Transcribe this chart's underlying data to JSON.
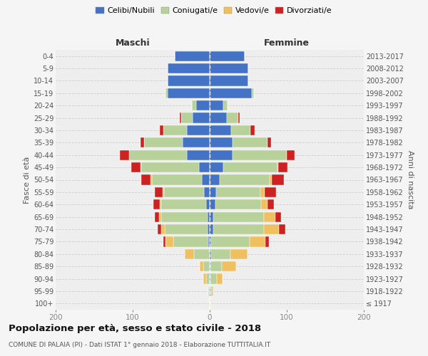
{
  "age_groups": [
    "100+",
    "95-99",
    "90-94",
    "85-89",
    "80-84",
    "75-79",
    "70-74",
    "65-69",
    "60-64",
    "55-59",
    "50-54",
    "45-49",
    "40-44",
    "35-39",
    "30-34",
    "25-29",
    "20-24",
    "15-19",
    "10-14",
    "5-9",
    "0-4"
  ],
  "birth_years": [
    "≤ 1917",
    "1918-1922",
    "1923-1927",
    "1928-1932",
    "1933-1937",
    "1938-1942",
    "1943-1947",
    "1948-1952",
    "1953-1957",
    "1958-1962",
    "1963-1967",
    "1968-1972",
    "1973-1977",
    "1978-1982",
    "1983-1987",
    "1988-1992",
    "1993-1997",
    "1998-2002",
    "2003-2007",
    "2008-2012",
    "2013-2017"
  ],
  "colors": {
    "celibi": "#4472c4",
    "coniugati": "#b8d09a",
    "vedovi": "#f0c060",
    "divorziati": "#cc2222"
  },
  "maschi": {
    "celibi": [
      0,
      0,
      0,
      0,
      0,
      2,
      3,
      3,
      5,
      7,
      10,
      14,
      30,
      35,
      30,
      22,
      18,
      55,
      55,
      55,
      45
    ],
    "coniugati": [
      0,
      2,
      5,
      8,
      20,
      45,
      55,
      60,
      58,
      52,
      65,
      75,
      75,
      50,
      30,
      15,
      5,
      2,
      0,
      0,
      0
    ],
    "vedovi": [
      0,
      0,
      3,
      5,
      12,
      10,
      5,
      3,
      2,
      2,
      2,
      1,
      0,
      0,
      0,
      0,
      0,
      0,
      0,
      0,
      0
    ],
    "divorziati": [
      0,
      0,
      0,
      0,
      0,
      3,
      5,
      5,
      8,
      10,
      12,
      12,
      12,
      5,
      5,
      2,
      0,
      0,
      0,
      0,
      0
    ]
  },
  "femmine": {
    "celibi": [
      0,
      1,
      1,
      1,
      2,
      2,
      5,
      5,
      7,
      8,
      13,
      18,
      30,
      30,
      28,
      22,
      18,
      55,
      50,
      50,
      45
    ],
    "coniugati": [
      0,
      2,
      8,
      15,
      25,
      50,
      65,
      65,
      60,
      58,
      65,
      70,
      70,
      45,
      25,
      15,
      5,
      2,
      0,
      0,
      0
    ],
    "vedovi": [
      1,
      2,
      8,
      18,
      22,
      20,
      20,
      15,
      8,
      5,
      3,
      1,
      0,
      0,
      0,
      0,
      0,
      0,
      0,
      0,
      0
    ],
    "divorziati": [
      0,
      0,
      0,
      0,
      0,
      5,
      8,
      8,
      8,
      15,
      15,
      12,
      10,
      5,
      5,
      2,
      0,
      0,
      0,
      0,
      0
    ]
  },
  "xlim": 200,
  "title": "Popolazione per età, sesso e stato civile - 2018",
  "subtitle": "COMUNE DI PALAIA (PI) - Dati ISTAT 1° gennaio 2018 - Elaborazione TUTTITALIA.IT",
  "xlabel_left": "Maschi",
  "xlabel_right": "Femmine",
  "ylabel_left": "Fasce di età",
  "ylabel_right": "Anni di nascita",
  "legend_labels": [
    "Celibi/Nubili",
    "Coniugati/e",
    "Vedovi/e",
    "Divorziati/e"
  ],
  "bg_color": "#f5f5f5",
  "plot_bg": "#eeeeee"
}
